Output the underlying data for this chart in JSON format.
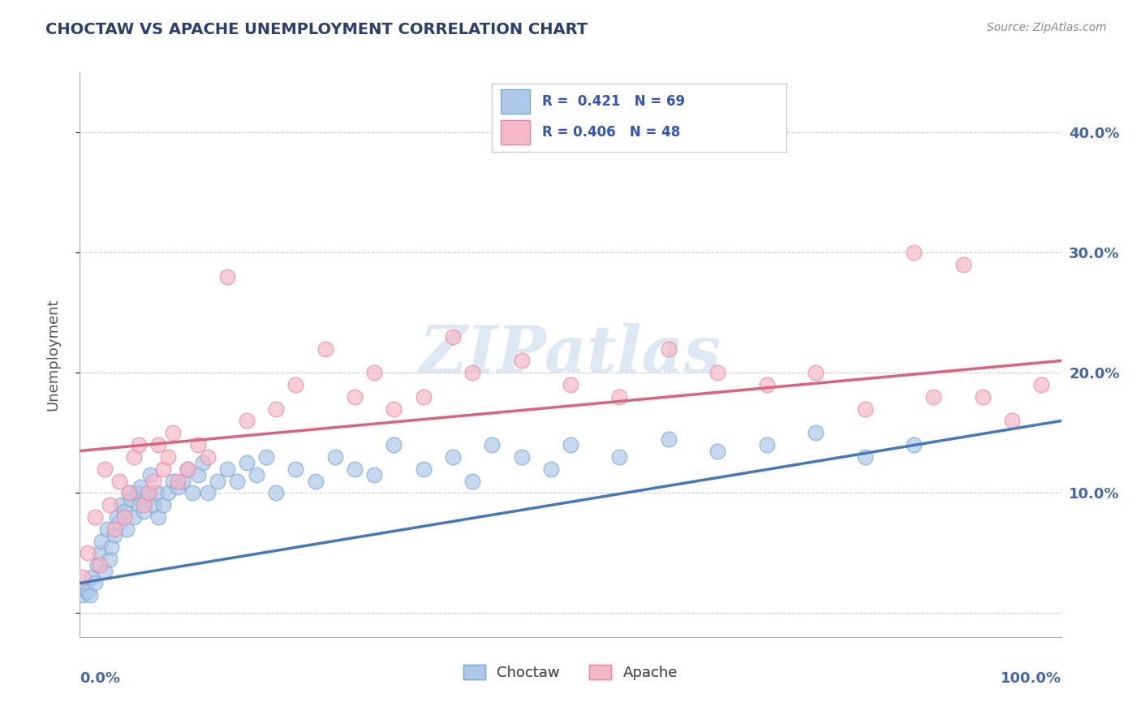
{
  "title": "CHOCTAW VS APACHE UNEMPLOYMENT CORRELATION CHART",
  "source": "Source: ZipAtlas.com",
  "ylabel": "Unemployment",
  "legend_bottom": [
    "Choctaw",
    "Apache"
  ],
  "choctaw_R": 0.421,
  "choctaw_N": 69,
  "apache_R": 0.406,
  "apache_N": 48,
  "choctaw_color": "#adc8e8",
  "apache_color": "#f5b8c8",
  "choctaw_edge_color": "#7aaad0",
  "apache_edge_color": "#e888a8",
  "choctaw_line_color": "#4477bb",
  "apache_line_color": "#e06080",
  "title_color": "#2c3e6b",
  "axis_label_color": "#4466aa",
  "tick_label_color": "#4466aa",
  "watermark_color": "#d8e4f0",
  "background_color": "#ffffff",
  "grid_color": "#cccccc",
  "choctaw_x": [
    0.3,
    0.5,
    0.8,
    1.0,
    1.2,
    1.5,
    1.8,
    2.0,
    2.2,
    2.5,
    2.8,
    3.0,
    3.2,
    3.5,
    3.8,
    4.0,
    4.2,
    4.5,
    4.8,
    5.0,
    5.2,
    5.5,
    5.8,
    6.0,
    6.2,
    6.5,
    6.8,
    7.0,
    7.2,
    7.5,
    7.8,
    8.0,
    8.5,
    9.0,
    9.5,
    10.0,
    10.5,
    11.0,
    11.5,
    12.0,
    12.5,
    13.0,
    14.0,
    15.0,
    16.0,
    17.0,
    18.0,
    19.0,
    20.0,
    22.0,
    24.0,
    26.0,
    28.0,
    30.0,
    32.0,
    35.0,
    38.0,
    40.0,
    42.0,
    45.0,
    48.0,
    50.0,
    55.0,
    60.0,
    65.0,
    70.0,
    75.0,
    80.0,
    85.0
  ],
  "choctaw_y": [
    1.5,
    2.0,
    1.8,
    1.5,
    3.0,
    2.5,
    4.0,
    5.0,
    6.0,
    3.5,
    7.0,
    4.5,
    5.5,
    6.5,
    8.0,
    7.5,
    9.0,
    8.5,
    7.0,
    10.0,
    9.5,
    8.0,
    10.0,
    9.0,
    10.5,
    8.5,
    9.5,
    10.0,
    11.5,
    9.0,
    10.0,
    8.0,
    9.0,
    10.0,
    11.0,
    10.5,
    11.0,
    12.0,
    10.0,
    11.5,
    12.5,
    10.0,
    11.0,
    12.0,
    11.0,
    12.5,
    11.5,
    13.0,
    10.0,
    12.0,
    11.0,
    13.0,
    12.0,
    11.5,
    14.0,
    12.0,
    13.0,
    11.0,
    14.0,
    13.0,
    12.0,
    14.0,
    13.0,
    14.5,
    13.5,
    14.0,
    15.0,
    13.0,
    14.0
  ],
  "apache_x": [
    0.3,
    0.8,
    1.5,
    2.0,
    2.5,
    3.0,
    3.5,
    4.0,
    4.5,
    5.0,
    5.5,
    6.0,
    6.5,
    7.0,
    7.5,
    8.0,
    8.5,
    9.0,
    9.5,
    10.0,
    11.0,
    12.0,
    13.0,
    15.0,
    17.0,
    20.0,
    22.0,
    25.0,
    28.0,
    30.0,
    32.0,
    35.0,
    38.0,
    40.0,
    45.0,
    50.0,
    55.0,
    60.0,
    65.0,
    70.0,
    75.0,
    80.0,
    85.0,
    87.0,
    90.0,
    92.0,
    95.0,
    98.0
  ],
  "apache_y": [
    3.0,
    5.0,
    8.0,
    4.0,
    12.0,
    9.0,
    7.0,
    11.0,
    8.0,
    10.0,
    13.0,
    14.0,
    9.0,
    10.0,
    11.0,
    14.0,
    12.0,
    13.0,
    15.0,
    11.0,
    12.0,
    14.0,
    13.0,
    28.0,
    16.0,
    17.0,
    19.0,
    22.0,
    18.0,
    20.0,
    17.0,
    18.0,
    23.0,
    20.0,
    21.0,
    19.0,
    18.0,
    22.0,
    20.0,
    19.0,
    20.0,
    17.0,
    30.0,
    18.0,
    29.0,
    18.0,
    16.0,
    19.0
  ],
  "choctaw_trend": [
    2.5,
    16.0
  ],
  "apache_trend": [
    13.5,
    21.0
  ],
  "yaxis_ticks": [
    0,
    10,
    20,
    30,
    40
  ],
  "yaxis_right_labels": [
    "",
    "10.0%",
    "20.0%",
    "30.0%",
    "40.0%"
  ],
  "xlim": [
    0,
    100
  ],
  "ylim": [
    -2,
    45
  ]
}
